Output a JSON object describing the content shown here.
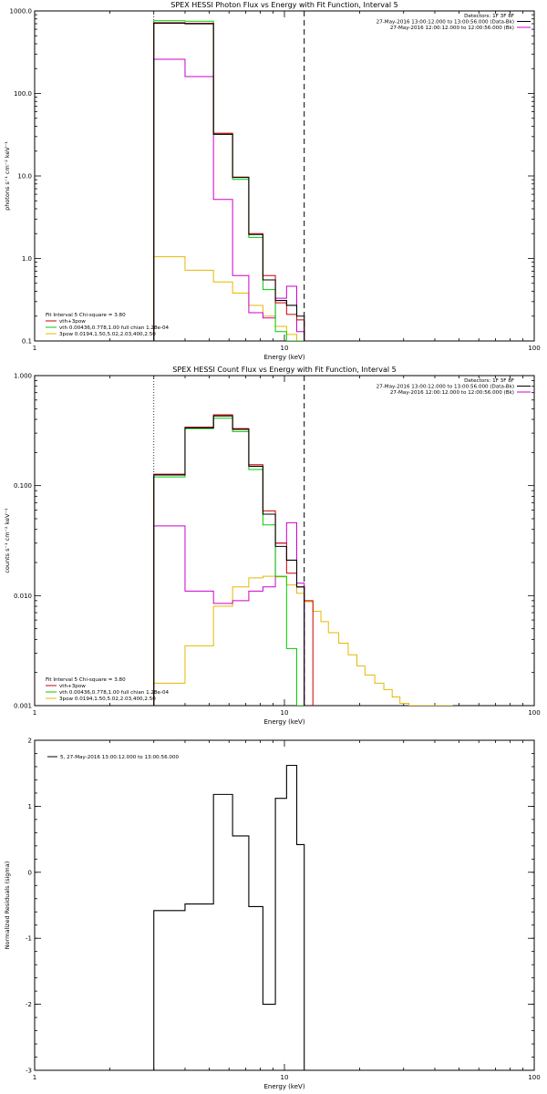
{
  "colors": {
    "data": "#000000",
    "bkg": "#cc00cc",
    "total": "#cc0000",
    "vth": "#00cc00",
    "pow": "#e6b800",
    "axis": "#000000"
  },
  "chart_data": [
    {
      "id": "photon",
      "type": "line",
      "scale": "log-log",
      "title": "SPEX HESSI Photon Flux vs Energy with Fit Function, Interval 5",
      "xlabel": "Energy (keV)",
      "ylabel": "photons s⁻¹ cm⁻² keV⁻¹",
      "xlim": [
        1,
        100
      ],
      "ylim": [
        0.1,
        1000
      ],
      "xticks": [
        {
          "v": 1,
          "label": "1"
        },
        {
          "v": 10,
          "label": "10"
        },
        {
          "v": 100,
          "label": "100"
        }
      ],
      "yticks": [
        {
          "v": 0.1,
          "label": "0.1"
        },
        {
          "v": 1,
          "label": "1.0"
        },
        {
          "v": 10,
          "label": "10.0"
        },
        {
          "v": 100,
          "label": "100.0"
        },
        {
          "v": 1000,
          "label": "1000.0"
        }
      ],
      "info_lines": [
        "Detectors: 1F 3F 8F",
        "27-May-2016 13:00:12.000 to 13:00:56.000 (Data-Bk)",
        "27-May-2016 12:00:12.000 to 12:00:56.000 (Bk)"
      ],
      "fit_labels": [
        "Fit Interval 5   Chi-square = 3.80",
        "vth+3pow",
        "vth 0.00436,0.778,1.00   full chian 1.28e-04",
        "3pow 0.0194,1.50,5.02,2.03,400,2.50"
      ],
      "info_legend_series": [
        null,
        "data",
        "bkg"
      ],
      "fit_legend_series": [
        null,
        "total",
        "vth",
        "pow"
      ],
      "dotted_x": 3.0,
      "dashed_x": 12.0,
      "edges": [
        3.0,
        4.0,
        5.2,
        6.2,
        7.2,
        8.2,
        9.2,
        10.2,
        11.2,
        12.0
      ],
      "series": [
        {
          "key": "pow",
          "values": [
            1.05,
            0.72,
            0.52,
            0.38,
            0.27,
            0.2,
            0.15,
            0.12,
            0.1
          ]
        },
        {
          "key": "bkg",
          "values": [
            260,
            160,
            5.2,
            0.62,
            0.22,
            0.19,
            0.33,
            0.46,
            0.13
          ]
        },
        {
          "key": "vth",
          "values": [
            760,
            750,
            32,
            9.1,
            1.8,
            0.42,
            0.13,
            0.09,
            0.08
          ]
        },
        {
          "key": "total",
          "values": [
            720,
            710,
            33,
            9.7,
            2.0,
            0.62,
            0.29,
            0.21,
            0.18
          ]
        },
        {
          "key": "data",
          "values": [
            710,
            700,
            32,
            9.6,
            1.95,
            0.55,
            0.31,
            0.27,
            0.2
          ]
        }
      ]
    },
    {
      "id": "count",
      "type": "line",
      "scale": "log-log",
      "title": "SPEX HESSI Count Flux vs Energy with Fit Function, Interval 5",
      "xlabel": "Energy (keV)",
      "ylabel": "counts s⁻¹ cm⁻² keV⁻¹",
      "xlim": [
        1,
        100
      ],
      "ylim": [
        0.001,
        1
      ],
      "xticks": [
        {
          "v": 1,
          "label": "1"
        },
        {
          "v": 10,
          "label": "10"
        },
        {
          "v": 100,
          "label": "100"
        }
      ],
      "yticks": [
        {
          "v": 0.001,
          "label": "0.001"
        },
        {
          "v": 0.01,
          "label": "0.010"
        },
        {
          "v": 0.1,
          "label": "0.100"
        },
        {
          "v": 1,
          "label": "1.000"
        }
      ],
      "info_lines": [
        "Detectors: 1F 3F 8F",
        "27-May-2016 13:00:12.000 to 13:00:56.000 (Data-Bk)",
        "27-May-2016 12:00:12.000 to 12:00:56.000 (Bk)"
      ],
      "fit_labels": [
        "Fit Interval 5   Chi-square = 3.80",
        "vth+3pow",
        "vth 0.00436,0.778,1.00   full chian 1.28e-04",
        "3pow 0.0194,1.50,5.02,2.03,400,2.50"
      ],
      "info_legend_series": [
        null,
        "data",
        "bkg"
      ],
      "fit_legend_series": [
        null,
        "total",
        "vth",
        "pow"
      ],
      "dotted_x": 3.0,
      "dashed_x": 12.0,
      "series": [
        {
          "key": "pow",
          "edges": [
            3.0,
            4.0,
            5.2,
            6.2,
            7.2,
            8.2,
            9.2,
            10.2,
            11.2,
            12.0,
            13.0,
            14.0,
            15.0,
            16.5,
            18.0,
            19.5,
            21.0,
            23.0,
            25.0,
            27.0,
            29.0,
            31.5,
            34.0,
            37.0,
            40.0,
            43.5,
            47.0
          ],
          "values": [
            0.0016,
            0.0035,
            0.008,
            0.012,
            0.0145,
            0.015,
            0.0148,
            0.0125,
            0.0105,
            0.0088,
            0.0072,
            0.0058,
            0.0046,
            0.0037,
            0.0029,
            0.0023,
            0.0019,
            0.0016,
            0.0014,
            0.0012,
            0.00105,
            0.00095,
            0.00088,
            0.00082,
            0.00078,
            0.00075
          ]
        },
        {
          "key": "bkg",
          "edges": [
            3.0,
            4.0,
            5.2,
            6.2,
            7.2,
            8.2,
            9.2,
            10.2,
            11.2,
            12.0
          ],
          "values": [
            0.043,
            0.011,
            0.0085,
            0.009,
            0.011,
            0.012,
            0.03,
            0.046,
            0.013
          ]
        },
        {
          "key": "vth",
          "edges": [
            3.0,
            4.0,
            5.2,
            6.2,
            7.2,
            8.2,
            9.2,
            10.2,
            11.2,
            12.0
          ],
          "values": [
            0.12,
            0.33,
            0.41,
            0.31,
            0.14,
            0.044,
            0.015,
            0.0033,
            0.0008
          ]
        },
        {
          "key": "total",
          "edges": [
            3.0,
            4.0,
            5.2,
            6.2,
            7.2,
            8.2,
            9.2,
            10.2,
            11.2,
            12.0,
            13.0
          ],
          "values": [
            0.127,
            0.34,
            0.44,
            0.33,
            0.155,
            0.059,
            0.03,
            0.016,
            0.012,
            0.009
          ]
        },
        {
          "key": "data",
          "edges": [
            3.0,
            4.0,
            5.2,
            6.2,
            7.2,
            8.2,
            9.2,
            10.2,
            11.2,
            12.0
          ],
          "values": [
            0.125,
            0.335,
            0.43,
            0.325,
            0.15,
            0.055,
            0.028,
            0.021,
            0.012
          ]
        }
      ]
    },
    {
      "id": "residual",
      "type": "line",
      "scale": "log-linear",
      "title": "",
      "xlabel": "Energy (keV)",
      "ylabel": "Normalized Residuals (sigma)",
      "xlim": [
        1,
        100
      ],
      "ylim": [
        -3,
        2
      ],
      "xticks": [
        {
          "v": 1,
          "label": "1"
        },
        {
          "v": 10,
          "label": "10"
        },
        {
          "v": 100,
          "label": "100"
        }
      ],
      "yticks": [
        {
          "v": -3,
          "label": "-3"
        },
        {
          "v": -2,
          "label": "-2"
        },
        {
          "v": -1,
          "label": "-1"
        },
        {
          "v": 0,
          "label": "0"
        },
        {
          "v": 1,
          "label": "1"
        },
        {
          "v": 2,
          "label": "2"
        }
      ],
      "legend": "5, 27-May-2016 13:00:12.000 to 13:00:56.000",
      "edges": [
        3.0,
        4.0,
        5.2,
        6.2,
        7.2,
        8.2,
        9.2,
        10.2,
        11.2,
        12.0
      ],
      "series": [
        {
          "key": "data",
          "values": [
            -0.58,
            -0.48,
            1.18,
            0.55,
            -0.52,
            -2.0,
            1.12,
            1.62,
            0.42
          ]
        }
      ]
    }
  ]
}
